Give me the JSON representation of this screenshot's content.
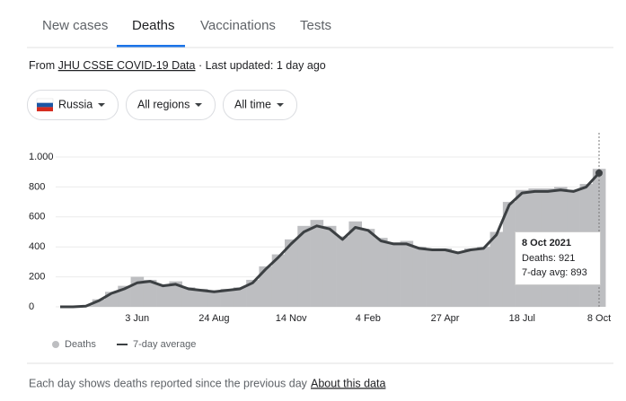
{
  "tabs": [
    "New cases",
    "Deaths",
    "Vaccinations",
    "Tests"
  ],
  "source": {
    "prefix": "From",
    "link": "JHU CSSE COVID-19 Data",
    "suffix": "· Last updated: 1 day ago"
  },
  "filters": [
    "Russia",
    "All regions",
    "All time"
  ],
  "chart_data": {
    "type": "bar-line",
    "categories": [
      null,
      null,
      null,
      null,
      null,
      null,
      "3 Jun",
      null,
      null,
      null,
      null,
      null,
      "24 Aug",
      null,
      null,
      null,
      null,
      null,
      "14 Nov",
      null,
      null,
      null,
      null,
      null,
      "4 Feb",
      null,
      null,
      null,
      null,
      null,
      "27 Apr",
      null,
      null,
      null,
      null,
      null,
      "18 Jul",
      null,
      null,
      null,
      null,
      null,
      "8 Oct"
    ],
    "series": [
      {
        "name": "Deaths",
        "color": "#bdbec1",
        "values": [
          0,
          2,
          10,
          50,
          100,
          140,
          200,
          180,
          150,
          170,
          130,
          120,
          110,
          120,
          130,
          180,
          270,
          350,
          450,
          540,
          580,
          540,
          470,
          570,
          520,
          460,
          430,
          440,
          400,
          390,
          390,
          370,
          390,
          400,
          500,
          700,
          780,
          790,
          790,
          800,
          780,
          820,
          921
        ]
      },
      {
        "name": "7-day average",
        "color": "#3c4043",
        "values": [
          0,
          0,
          5,
          40,
          90,
          120,
          160,
          170,
          140,
          150,
          120,
          110,
          100,
          110,
          120,
          160,
          250,
          330,
          420,
          500,
          540,
          520,
          450,
          530,
          510,
          440,
          420,
          420,
          390,
          380,
          380,
          360,
          380,
          390,
          480,
          680,
          760,
          770,
          770,
          780,
          770,
          800,
          893
        ]
      }
    ],
    "ylim": [
      0,
      1000
    ],
    "yticks": [
      0,
      200,
      400,
      600,
      800,
      {
        "value": 1000,
        "label": "1.000"
      }
    ],
    "grid": true,
    "tooltip": {
      "date": "8 Oct 2021",
      "deaths": "Deaths: 921",
      "avg": "7-day avg: 893"
    }
  },
  "footer": {
    "note": "Each day shows deaths reported since the previous day",
    "link": "About this data"
  }
}
